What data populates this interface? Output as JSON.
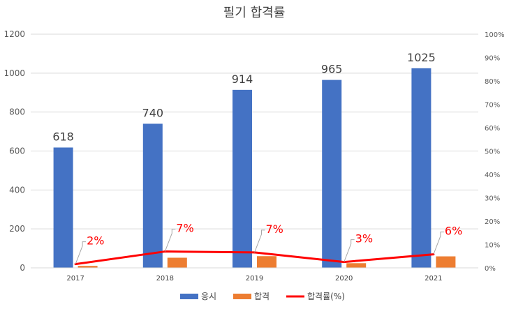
{
  "chart_data": {
    "type": "bar",
    "title": "필기 합격률",
    "categories": [
      "2017",
      "2018",
      "2019",
      "2020",
      "2021"
    ],
    "series": [
      {
        "name": "응시",
        "type": "bar",
        "axis": "left",
        "color": "#4472C4",
        "values": [
          618,
          740,
          914,
          965,
          1025
        ]
      },
      {
        "name": "합격",
        "type": "bar",
        "axis": "left",
        "color": "#ED7D31",
        "values": [
          10,
          52,
          60,
          24,
          59
        ]
      },
      {
        "name": "합격률(%)",
        "type": "line",
        "axis": "right",
        "color": "#FF0000",
        "values": [
          1.6,
          7.0,
          6.6,
          2.5,
          5.8
        ],
        "data_labels": [
          "2%",
          "7%",
          "7%",
          "3%",
          "6%"
        ]
      }
    ],
    "y_left": {
      "ticks": [
        "0",
        "200",
        "400",
        "600",
        "800",
        "1000",
        "1200"
      ],
      "ylim": [
        0,
        1200
      ]
    },
    "y_right": {
      "ticks": [
        "0%",
        "10%",
        "20%",
        "30%",
        "40%",
        "50%",
        "60%",
        "70%",
        "80%",
        "90%",
        "100%"
      ],
      "ylim": [
        0,
        100
      ]
    },
    "grid": true,
    "legend": "bottom"
  }
}
